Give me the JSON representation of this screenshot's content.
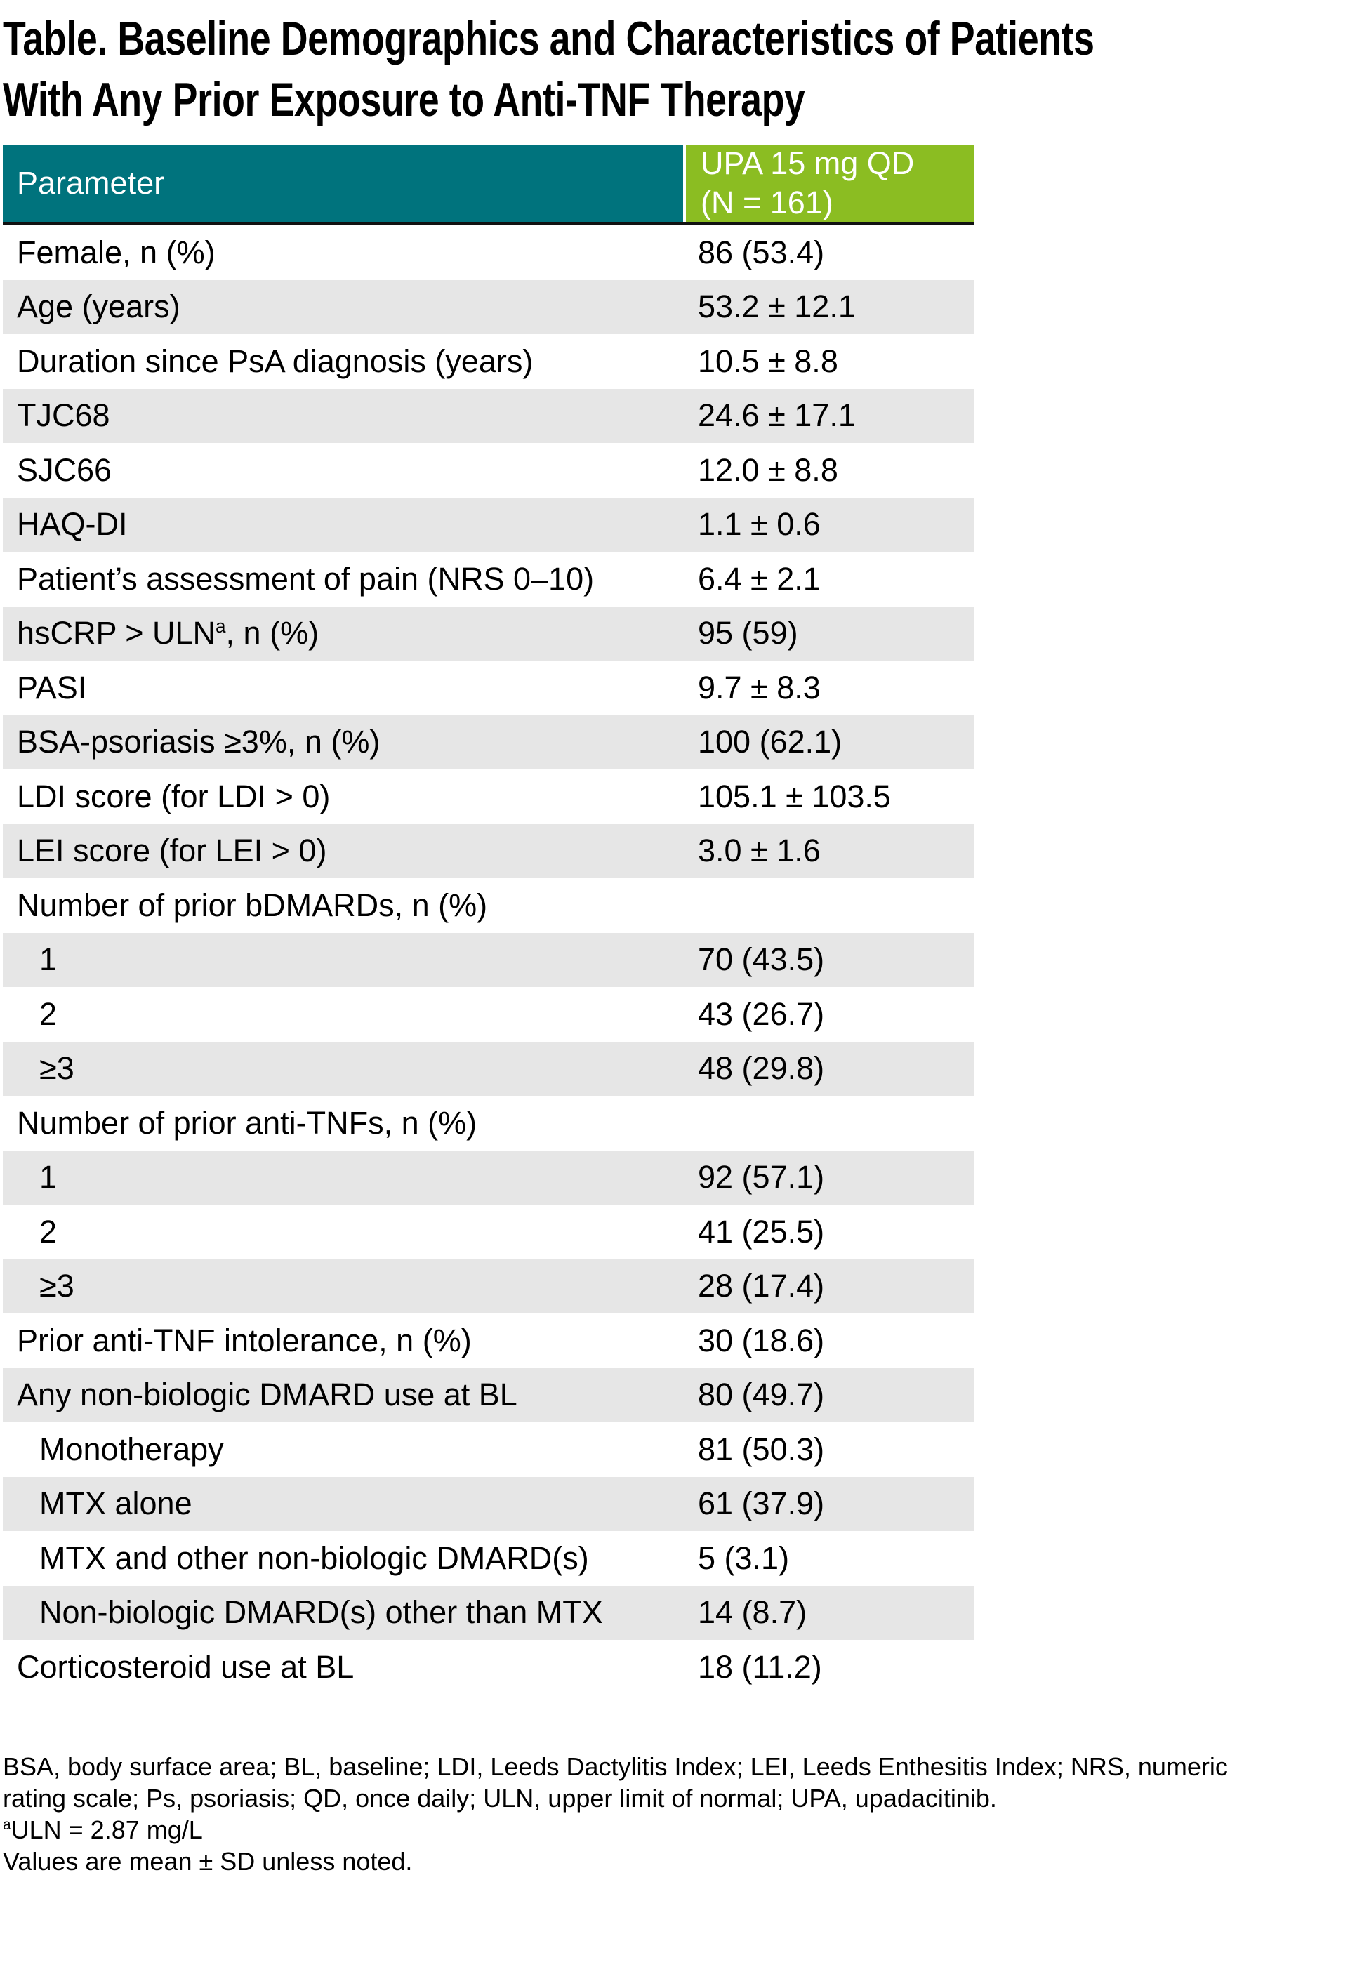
{
  "title": {
    "line1": "Table. Baseline Demographics and Characteristics of Patients",
    "line2": "With Any Prior Exposure to Anti-TNF Therapy"
  },
  "table": {
    "header": {
      "parameter": "Parameter",
      "group_line1": "UPA 15 mg QD",
      "group_line2": "(N = 161)"
    },
    "rows": [
      {
        "label": "Female, n (%)",
        "value": "86 (53.4)"
      },
      {
        "label": "Age (years)",
        "value": "53.2 ± 12.1"
      },
      {
        "label": "Duration since PsA diagnosis (years)",
        "value": "10.5 ± 8.8"
      },
      {
        "label": "TJC68",
        "value": "24.6 ± 17.1"
      },
      {
        "label": "SJC66",
        "value": "12.0 ± 8.8"
      },
      {
        "label": "HAQ-DI",
        "value": "1.1 ± 0.6"
      },
      {
        "label": "Patient’s assessment of pain (NRS 0–10)",
        "value": "6.4 ± 2.1"
      },
      {
        "label": "hsCRP > ULN",
        "label_sup": "a",
        "label_suffix": ", n (%)",
        "value": "95 (59)"
      },
      {
        "label": "PASI",
        "value": "9.7 ± 8.3"
      },
      {
        "label": "BSA-psoriasis ≥3%, n (%)",
        "value": "100 (62.1)"
      },
      {
        "label": "LDI score (for LDI > 0)",
        "value": "105.1 ± 103.5"
      },
      {
        "label": "LEI score (for LEI > 0)",
        "value": "3.0 ± 1.6"
      },
      {
        "label": "Number of prior bDMARDs, n (%)",
        "value": ""
      },
      {
        "label": "1",
        "value": "70 (43.5)",
        "indent": true
      },
      {
        "label": "2",
        "value": "43 (26.7)",
        "indent": true
      },
      {
        "label": "≥3",
        "value": "48 (29.8)",
        "indent": true
      },
      {
        "label": "Number of prior anti-TNFs, n (%)",
        "value": ""
      },
      {
        "label": "1",
        "value": "92 (57.1)",
        "indent": true
      },
      {
        "label": "2",
        "value": "41 (25.5)",
        "indent": true
      },
      {
        "label": "≥3",
        "value": "28 (17.4)",
        "indent": true
      },
      {
        "label": "Prior anti-TNF intolerance, n (%)",
        "value": "30 (18.6)"
      },
      {
        "label": "Any non-biologic DMARD use at BL",
        "value": "80 (49.7)"
      },
      {
        "label": "Monotherapy",
        "value": "81 (50.3)",
        "indent": true
      },
      {
        "label": "MTX alone",
        "value": "61 (37.9)",
        "indent": true
      },
      {
        "label": "MTX and other non-biologic DMARD(s)",
        "value": "5 (3.1)",
        "indent": true
      },
      {
        "label": "Non-biologic DMARD(s) other than MTX",
        "value": "14 (8.7)",
        "indent": true
      },
      {
        "label": "Corticosteroid use at BL",
        "value": "18 (11.2)"
      }
    ]
  },
  "footnotes": {
    "abbrev_line1": "BSA, body surface area; BL, baseline; LDI, Leeds Dactylitis Index; LEI, Leeds Enthesitis Index; NRS, numeric",
    "abbrev_line2": "rating scale; Ps, psoriasis; QD, once daily; ULN, upper limit of normal; UPA, upadacitinib.",
    "uln_sup": "a",
    "uln_text": "ULN = 2.87 mg/L",
    "values_note": "Values are mean ± SD unless noted."
  },
  "colors": {
    "teal": "#00737d",
    "green": "#8bbd22",
    "zebra": "#e6e6e6",
    "header-text": "#ffffff",
    "body-text": "#000000",
    "border": "#111111"
  }
}
